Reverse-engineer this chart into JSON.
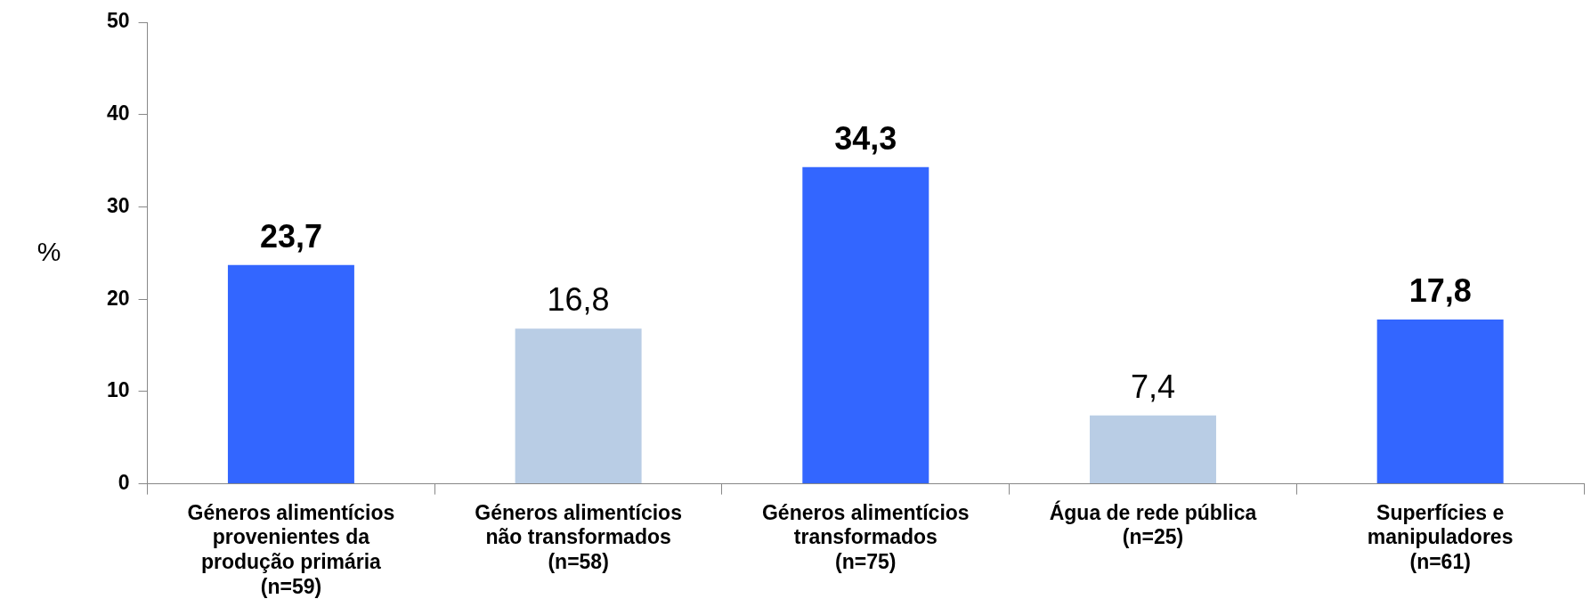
{
  "chart_data": {
    "type": "bar",
    "ylabel": "%",
    "categories": [
      "Géneros alimentícios provenientes da produção primária (n=59)",
      "Géneros alimentícios não transformados (n=58)",
      "Géneros alimentícios transformados (n=75)",
      "Água de rede pública (n=25)",
      "Superfícies e manipuladores (n=61)"
    ],
    "values": [
      23.7,
      16.8,
      34.3,
      7.4,
      17.8
    ],
    "colors": [
      "#3366ff",
      "#b9cde5",
      "#3366ff",
      "#b9cde5",
      "#3366ff"
    ],
    "value_labels": [
      "23,7",
      "16,8",
      "34,3",
      "7,4",
      "17,8"
    ],
    "ylim": [
      0,
      50
    ],
    "yticks": [
      0,
      10,
      20,
      30,
      40,
      50
    ],
    "grid": false,
    "legend": false
  }
}
